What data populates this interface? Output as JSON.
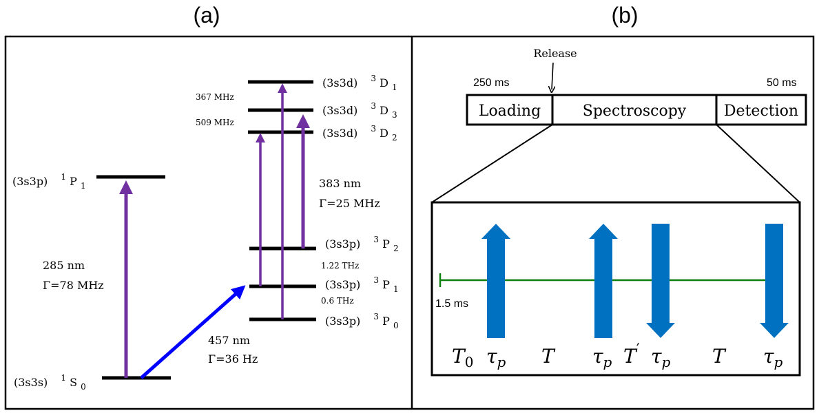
{
  "colors": {
    "purple": "#7030a0",
    "blue": "#0000ff",
    "pulse_blue": "#0070c0",
    "green": "#0f7f0f",
    "black": "#000000"
  },
  "panel_a": {
    "label": "(a)",
    "levels": {
      "s0": {
        "config": "(3s3s)",
        "term": "S",
        "sup": "1",
        "sub": "0"
      },
      "p1_singlet": {
        "config": "(3s3p)",
        "term": "P",
        "sup": "1",
        "sub": "1"
      },
      "d1": {
        "config": "(3s3d)",
        "term": "D",
        "sup": "3",
        "sub": "1"
      },
      "d3": {
        "config": "(3s3d)",
        "term": "D",
        "sup": "3",
        "sub": "3"
      },
      "d2": {
        "config": "(3s3d)",
        "term": "D",
        "sup": "3",
        "sub": "2"
      },
      "p2": {
        "config": "(3s3p)",
        "term": "P",
        "sup": "3",
        "sub": "2"
      },
      "p1": {
        "config": "(3s3p)",
        "term": "P",
        "sup": "3",
        "sub": "1"
      },
      "p0": {
        "config": "(3s3p)",
        "term": "P",
        "sup": "3",
        "sub": "0"
      }
    },
    "splittings": {
      "d1_d3": "367 MHz",
      "d3_d2": "509 MHz",
      "p2_p1": "1.22 THz",
      "p1_p0": "0.6 THz"
    },
    "transitions": {
      "t285": {
        "wavelength": "285 nm",
        "width": "Γ=78 MHz"
      },
      "t457": {
        "wavelength": "457 nm",
        "width": "Γ=36 Hz"
      },
      "t383": {
        "wavelength": "383 nm",
        "width": "Γ=25 MHz"
      }
    }
  },
  "panel_b": {
    "label": "(b)",
    "release": "Release",
    "loading_time": "250 ms",
    "detection_time": "50 ms",
    "stages": [
      "Loading",
      "Spectroscopy",
      "Detection"
    ],
    "delay": "1.5 ms",
    "timing_labels": {
      "t0": "T",
      "t0_sub": "0",
      "tau": "τ",
      "tau_sub": "p",
      "T": "T",
      "Tprime": "T",
      "prime": "′"
    }
  }
}
